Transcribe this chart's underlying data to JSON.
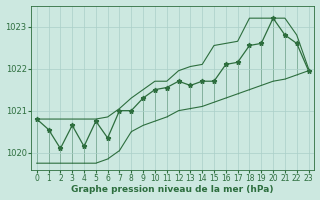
{
  "title": "Graphe pression niveau de la mer (hPa)",
  "background_color": "#cce8e0",
  "grid_color": "#aacfc8",
  "line_color": "#2d6e3e",
  "xlim": [
    -0.5,
    23.5
  ],
  "ylim": [
    1019.6,
    1023.5
  ],
  "yticks": [
    1020,
    1021,
    1022,
    1023
  ],
  "hours": [
    0,
    1,
    2,
    3,
    4,
    5,
    6,
    7,
    8,
    9,
    10,
    11,
    12,
    13,
    14,
    15,
    16,
    17,
    18,
    19,
    20,
    21,
    22,
    23
  ],
  "pressure": [
    1020.8,
    1020.55,
    1020.1,
    1020.65,
    1020.15,
    1020.75,
    1020.35,
    1021.0,
    1021.0,
    1021.3,
    1021.5,
    1021.55,
    1021.7,
    1021.6,
    1021.7,
    1021.7,
    1022.1,
    1022.15,
    1022.55,
    1022.6,
    1023.2,
    1022.8,
    1022.6,
    1021.95
  ],
  "fan_upper": [
    1020.8,
    1020.8,
    1020.8,
    1020.8,
    1020.8,
    1020.8,
    1020.85,
    1021.05,
    1021.3,
    1021.5,
    1021.7,
    1021.7,
    1021.95,
    1022.05,
    1022.1,
    1022.55,
    1022.6,
    1022.65,
    1023.2,
    1023.2,
    1023.2,
    1023.2,
    1022.8,
    1022.0
  ],
  "fan_lower": [
    1019.75,
    1019.75,
    1019.75,
    1019.75,
    1019.75,
    1019.75,
    1019.85,
    1020.05,
    1020.5,
    1020.65,
    1020.75,
    1020.85,
    1021.0,
    1021.05,
    1021.1,
    1021.2,
    1021.3,
    1021.4,
    1021.5,
    1021.6,
    1021.7,
    1021.75,
    1021.85,
    1021.95
  ],
  "title_fontsize": 6.5,
  "tick_fontsize": 5.5,
  "ylabel_fontsize": 6
}
